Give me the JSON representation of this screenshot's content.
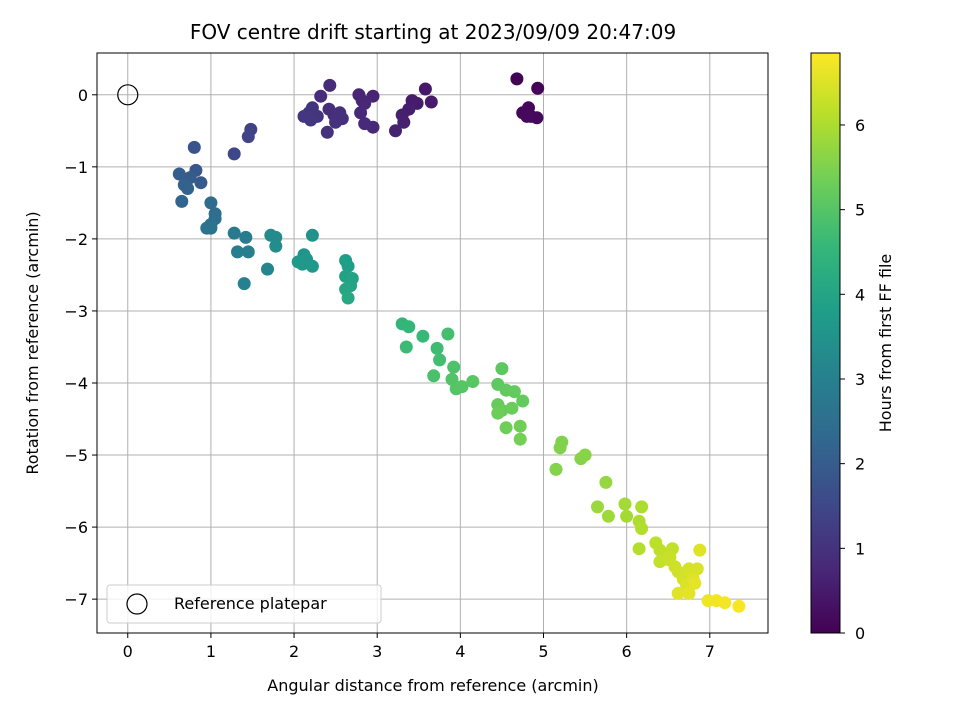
{
  "chart_data": {
    "type": "scatter",
    "title": "FOV centre drift starting at 2023/09/09 20:47:09",
    "xlabel": "Angular distance from reference (arcmin)",
    "ylabel": "Rotation from reference (arcmin)",
    "xlim": [
      -0.37,
      7.7
    ],
    "ylim": [
      -7.47,
      0.58
    ],
    "xticks": [
      0,
      1,
      2,
      3,
      4,
      5,
      6,
      7
    ],
    "yticks": [
      0,
      -1,
      -2,
      -3,
      -4,
      -5,
      -6,
      -7
    ],
    "grid": true,
    "legend": {
      "placement": "lower-left",
      "entries": [
        "Reference platepar"
      ]
    },
    "reference_point": {
      "x": 0,
      "y": 0
    },
    "colorbar": {
      "label": "Hours from first FF file",
      "range": [
        0,
        6.85
      ],
      "ticks": [
        0,
        1,
        2,
        3,
        4,
        5,
        6
      ],
      "colormap": "viridis"
    },
    "colormap_stops": [
      "#440154",
      "#482878",
      "#3e4989",
      "#31688e",
      "#26828e",
      "#1f9e89",
      "#35b779",
      "#6ece58",
      "#b5de2b",
      "#fde725"
    ],
    "series": [
      {
        "points": [
          [
            4.68,
            0.22,
            0.05
          ],
          [
            4.93,
            0.09,
            0.08
          ],
          [
            4.75,
            -0.25,
            0.1
          ],
          [
            4.82,
            -0.18,
            0.12
          ],
          [
            4.85,
            -0.3,
            0.14
          ],
          [
            4.92,
            -0.32,
            0.16
          ],
          [
            4.8,
            -0.3,
            0.18
          ],
          [
            3.58,
            0.08,
            0.45
          ],
          [
            3.65,
            -0.1,
            0.48
          ],
          [
            3.48,
            -0.12,
            0.5
          ],
          [
            3.42,
            -0.08,
            0.52
          ],
          [
            3.38,
            -0.2,
            0.55
          ],
          [
            3.3,
            -0.28,
            0.58
          ],
          [
            3.32,
            -0.38,
            0.6
          ],
          [
            3.22,
            -0.5,
            0.63
          ],
          [
            2.95,
            -0.02,
            0.68
          ],
          [
            2.78,
            0.0,
            0.7
          ],
          [
            2.82,
            -0.08,
            0.72
          ],
          [
            2.85,
            -0.12,
            0.74
          ],
          [
            2.8,
            -0.25,
            0.76
          ],
          [
            2.95,
            -0.45,
            0.78
          ],
          [
            2.85,
            -0.4,
            0.8
          ],
          [
            2.43,
            0.13,
            0.85
          ],
          [
            2.32,
            -0.02,
            0.87
          ],
          [
            2.42,
            -0.2,
            0.89
          ],
          [
            2.48,
            -0.28,
            0.91
          ],
          [
            2.55,
            -0.25,
            0.93
          ],
          [
            2.58,
            -0.33,
            0.95
          ],
          [
            2.5,
            -0.38,
            0.97
          ],
          [
            2.4,
            -0.52,
            0.99
          ],
          [
            2.22,
            -0.18,
            1.03
          ],
          [
            2.28,
            -0.3,
            1.05
          ],
          [
            2.18,
            -0.25,
            1.07
          ],
          [
            2.12,
            -0.3,
            1.09
          ],
          [
            2.2,
            -0.35,
            1.11
          ],
          [
            1.48,
            -0.48,
            1.35
          ],
          [
            1.45,
            -0.58,
            1.4
          ],
          [
            1.28,
            -0.82,
            1.5
          ],
          [
            0.8,
            -0.73,
            1.8
          ],
          [
            0.82,
            -1.05,
            1.9
          ],
          [
            0.88,
            -1.22,
            1.95
          ],
          [
            0.75,
            -1.15,
            2.0
          ],
          [
            0.62,
            -1.1,
            2.05
          ],
          [
            0.68,
            -1.25,
            2.1
          ],
          [
            0.72,
            -1.3,
            2.15
          ],
          [
            0.65,
            -1.48,
            2.2
          ],
          [
            1.0,
            -1.5,
            2.4
          ],
          [
            1.05,
            -1.65,
            2.45
          ],
          [
            1.05,
            -1.72,
            2.5
          ],
          [
            1.0,
            -1.8,
            2.55
          ],
          [
            0.95,
            -1.85,
            2.6
          ],
          [
            1.0,
            -1.85,
            2.62
          ],
          [
            1.28,
            -1.92,
            2.8
          ],
          [
            1.42,
            -1.98,
            2.85
          ],
          [
            1.32,
            -2.18,
            2.9
          ],
          [
            1.45,
            -2.18,
            2.95
          ],
          [
            1.4,
            -2.62,
            3.0
          ],
          [
            1.68,
            -2.42,
            3.1
          ],
          [
            1.72,
            -1.95,
            3.25
          ],
          [
            1.78,
            -1.98,
            3.3
          ],
          [
            1.78,
            -2.1,
            3.35
          ],
          [
            2.22,
            -1.95,
            3.5
          ],
          [
            2.12,
            -2.22,
            3.55
          ],
          [
            2.15,
            -2.28,
            3.6
          ],
          [
            2.1,
            -2.35,
            3.62
          ],
          [
            2.22,
            -2.38,
            3.65
          ],
          [
            2.05,
            -2.32,
            3.68
          ],
          [
            2.62,
            -2.3,
            3.8
          ],
          [
            2.65,
            -2.38,
            3.85
          ],
          [
            2.62,
            -2.52,
            3.9
          ],
          [
            2.7,
            -2.55,
            3.95
          ],
          [
            2.68,
            -2.65,
            4.0
          ],
          [
            2.62,
            -2.7,
            4.05
          ],
          [
            2.65,
            -2.82,
            4.1
          ],
          [
            3.3,
            -3.18,
            4.5
          ],
          [
            3.38,
            -3.22,
            4.55
          ],
          [
            3.55,
            -3.35,
            4.6
          ],
          [
            3.35,
            -3.5,
            4.65
          ],
          [
            3.72,
            -3.52,
            4.7
          ],
          [
            3.75,
            -3.68,
            4.75
          ],
          [
            3.85,
            -3.32,
            4.8
          ],
          [
            3.68,
            -3.9,
            4.85
          ],
          [
            3.92,
            -3.78,
            4.9
          ],
          [
            3.9,
            -3.95,
            4.95
          ],
          [
            3.95,
            -4.08,
            5.0
          ],
          [
            4.02,
            -4.05,
            5.02
          ],
          [
            4.15,
            -3.98,
            5.05
          ],
          [
            4.5,
            -3.8,
            5.1
          ],
          [
            4.45,
            -4.02,
            5.12
          ],
          [
            4.55,
            -4.1,
            5.15
          ],
          [
            4.65,
            -4.12,
            5.18
          ],
          [
            4.75,
            -4.25,
            5.2
          ],
          [
            4.45,
            -4.3,
            5.22
          ],
          [
            4.5,
            -4.38,
            5.25
          ],
          [
            4.62,
            -4.35,
            5.28
          ],
          [
            4.45,
            -4.42,
            5.3
          ],
          [
            4.55,
            -4.62,
            5.32
          ],
          [
            4.72,
            -4.6,
            5.35
          ],
          [
            4.72,
            -4.78,
            5.38
          ],
          [
            5.22,
            -4.82,
            5.5
          ],
          [
            5.2,
            -4.9,
            5.52
          ],
          [
            5.15,
            -5.2,
            5.55
          ],
          [
            5.45,
            -5.05,
            5.58
          ],
          [
            5.5,
            -5.0,
            5.6
          ],
          [
            5.75,
            -5.38,
            5.75
          ],
          [
            5.65,
            -5.72,
            5.8
          ],
          [
            5.78,
            -5.85,
            5.85
          ],
          [
            5.98,
            -5.68,
            5.9
          ],
          [
            6.0,
            -5.85,
            5.92
          ],
          [
            6.18,
            -5.72,
            6.0
          ],
          [
            6.15,
            -5.92,
            6.02
          ],
          [
            6.18,
            -6.02,
            6.05
          ],
          [
            6.15,
            -6.3,
            6.08
          ],
          [
            6.35,
            -6.22,
            6.15
          ],
          [
            6.4,
            -6.32,
            6.18
          ],
          [
            6.45,
            -6.38,
            6.2
          ],
          [
            6.55,
            -6.3,
            6.22
          ],
          [
            6.4,
            -6.48,
            6.25
          ],
          [
            6.5,
            -6.45,
            6.28
          ],
          [
            6.52,
            -6.42,
            6.3
          ],
          [
            6.58,
            -6.55,
            6.35
          ],
          [
            6.62,
            -6.62,
            6.38
          ],
          [
            6.68,
            -6.72,
            6.4
          ],
          [
            6.75,
            -6.58,
            6.42
          ],
          [
            6.85,
            -6.58,
            6.45
          ],
          [
            6.72,
            -6.8,
            6.48
          ],
          [
            6.8,
            -6.72,
            6.5
          ],
          [
            6.88,
            -6.32,
            6.52
          ],
          [
            6.62,
            -6.92,
            6.55
          ],
          [
            6.75,
            -6.92,
            6.58
          ],
          [
            6.82,
            -6.78,
            6.6
          ],
          [
            6.98,
            -7.02,
            6.7
          ],
          [
            7.08,
            -7.02,
            6.72
          ],
          [
            7.18,
            -7.05,
            6.75
          ],
          [
            7.35,
            -7.1,
            6.8
          ]
        ]
      }
    ]
  }
}
